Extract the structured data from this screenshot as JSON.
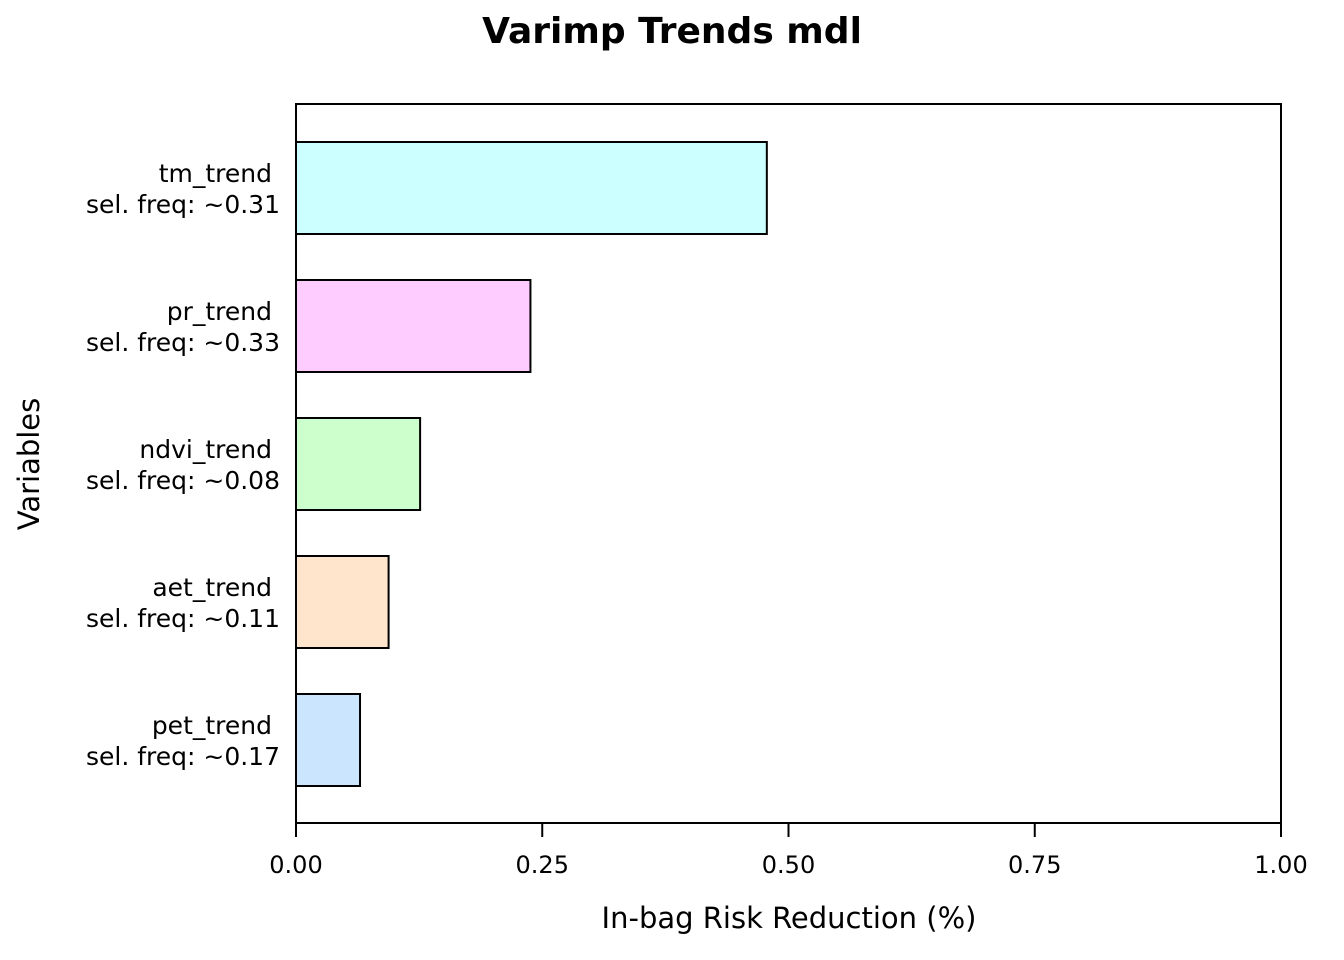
{
  "chart_data": {
    "type": "bar",
    "orientation": "horizontal",
    "title": "Varimp Trends mdl",
    "xlabel": "In-bag Risk Reduction (%)",
    "ylabel": "Variables",
    "xlim": [
      0,
      1
    ],
    "xticks": [
      "0.00",
      "0.25",
      "0.50",
      "0.75",
      "1.00"
    ],
    "grid": false,
    "legend": "none",
    "categories": [
      {
        "name": "tm_trend",
        "sel_freq": "sel. freq: ~0.31",
        "value": 0.478,
        "color": "#ccffff"
      },
      {
        "name": "pr_trend",
        "sel_freq": "sel. freq: ~0.33",
        "value": 0.238,
        "color": "#ffccff"
      },
      {
        "name": "ndvi_trend",
        "sel_freq": "sel. freq: ~0.08",
        "value": 0.126,
        "color": "#ccffcc"
      },
      {
        "name": "aet_trend",
        "sel_freq": "sel. freq: ~0.11",
        "value": 0.094,
        "color": "#ffe5cc"
      },
      {
        "name": "pet_trend",
        "sel_freq": "sel. freq: ~0.17",
        "value": 0.065,
        "color": "#cce5ff"
      }
    ]
  }
}
